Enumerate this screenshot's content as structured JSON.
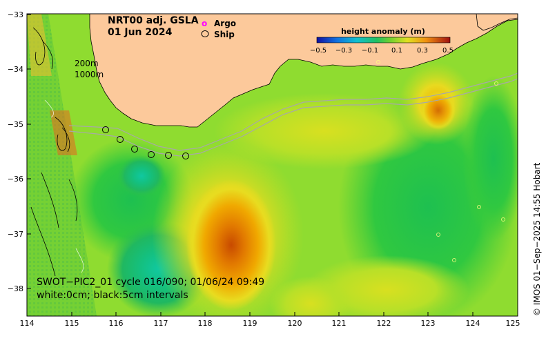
{
  "title": {
    "line1": "NRT00 adj. GSLA",
    "line2": "01 Jun 2024"
  },
  "legend": {
    "argo_label": "Argo",
    "ship_label": "Ship",
    "argo_symbol": "o",
    "argo_color": "#ff00ff"
  },
  "depth_labels": {
    "shallow": "200m",
    "deep": "1000m"
  },
  "colorbar": {
    "title": "height anomaly (m)",
    "ticks": [
      "−0.5",
      "−0.3",
      "−0.1",
      "0.1",
      "0.3",
      "0.5"
    ]
  },
  "axes": {
    "x_ticks": [
      "114",
      "115",
      "116",
      "117",
      "118",
      "119",
      "120",
      "121",
      "122",
      "123",
      "124",
      "125"
    ],
    "y_ticks": [
      "−33",
      "−34",
      "−35",
      "−36",
      "−37",
      "−38"
    ]
  },
  "swot": {
    "line1": "SWOT−PIC2_01 cycle 016/090; 01/06/24 09:49",
    "line2": "white:0cm; black:5cm intervals"
  },
  "credit": "© IMOS 01−Sep−2025 14:55 Hobart",
  "colors": {
    "land": "#fcc99b",
    "ocean_base": "#8fdc30",
    "isobath": "#a8a8a8"
  }
}
